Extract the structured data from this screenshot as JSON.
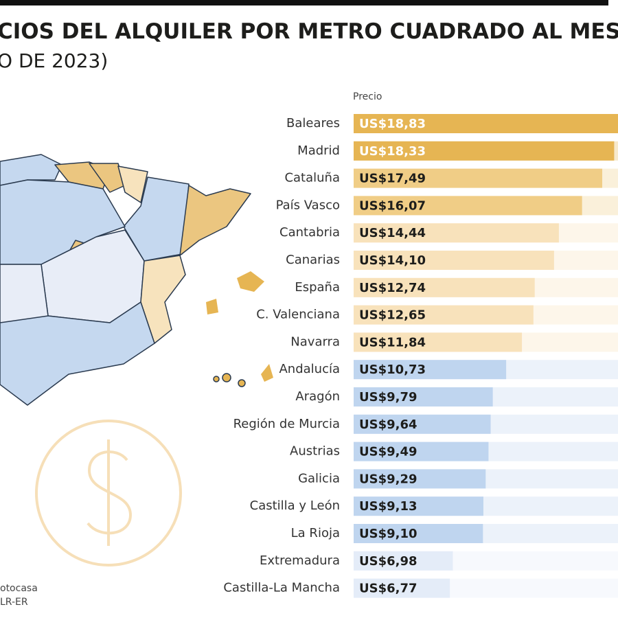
{
  "chart_data": {
    "type": "bar",
    "orientation": "horizontal",
    "title": "CIOS DEL ALQUILER POR METRO CUADRADO AL MES",
    "subtitle": "O DE 2023)",
    "value_axis_label": "Precio",
    "source": [
      "otocasa",
      "LR-ER"
    ],
    "categories": [
      "Baleares",
      "Madrid",
      "Cataluña",
      "País Vasco",
      "Cantabria",
      "Canarias",
      "España",
      "C. Valenciana",
      "Navarra",
      "Andalucía",
      "Aragón",
      "Región de Murcia",
      "Austrias",
      "Galicia",
      "Castilla y León",
      "La Rioja",
      "Extremadura",
      "Castilla-La Mancha"
    ],
    "values": [
      18.83,
      18.33,
      17.49,
      16.07,
      14.44,
      14.1,
      12.74,
      12.65,
      11.84,
      10.73,
      9.79,
      9.64,
      9.49,
      9.29,
      9.13,
      9.1,
      6.98,
      6.77
    ],
    "value_labels": [
      "US$18,83",
      "US$18,33",
      "US$17,49",
      "US$16,07",
      "US$14,44",
      "US$14,10",
      "US$12,74",
      "US$12,65",
      "US$11,84",
      "US$10,73",
      "US$9,79",
      "US$9,64",
      "US$9,49",
      "US$9,29",
      "US$9,13",
      "US$9,10",
      "US$6,98",
      "US$6,77"
    ],
    "colors": [
      "#e6b553",
      "#e6b553",
      "#f0cd86",
      "#f0cd86",
      "#f8e2bb",
      "#f8e2bb",
      "#f8e2bb",
      "#f8e2bb",
      "#f8e2bb",
      "#bfd5ef",
      "#bfd5ef",
      "#bfd5ef",
      "#bfd5ef",
      "#bfd5ef",
      "#bfd5ef",
      "#bfd5ef",
      "#e4ecf8",
      "#e4ecf8"
    ],
    "value_label_colors": [
      "#ffffff",
      "#ffffff",
      "#1d1d1b",
      "#1d1d1b",
      "#1d1d1b",
      "#1d1d1b",
      "#1d1d1b",
      "#1d1d1b",
      "#1d1d1b",
      "#1d1d1b",
      "#1d1d1b",
      "#1d1d1b",
      "#1d1d1b",
      "#1d1d1b",
      "#1d1d1b",
      "#1d1d1b",
      "#1d1d1b",
      "#1d1d1b"
    ],
    "xlim": [
      0,
      18.6
    ]
  }
}
